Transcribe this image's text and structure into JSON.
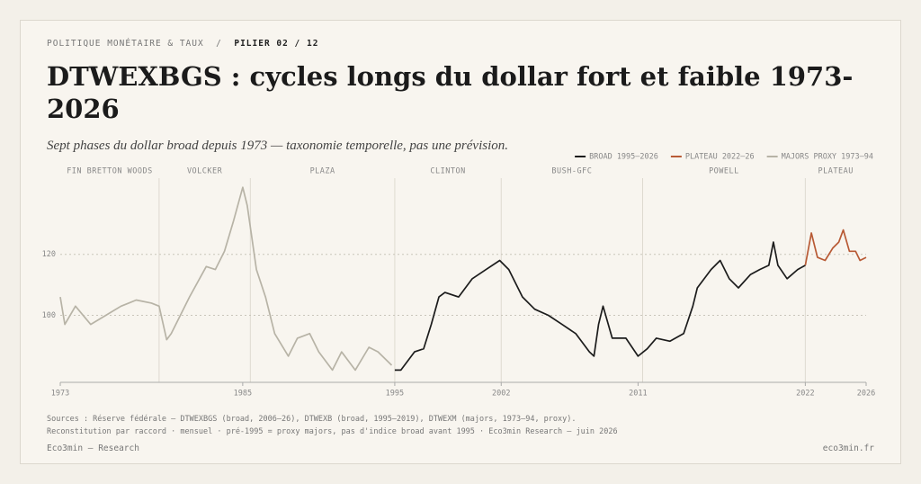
{
  "header": {
    "section": "POLITIQUE MONÉTAIRE & TAUX",
    "separator": "/",
    "pillar": "PILIER 02 / 12"
  },
  "chart_data": {
    "type": "line",
    "title": "DTWEXBGS : cycles longs du dollar fort et faible 1973-2026",
    "subtitle": "Sept phases du dollar broad depuis 1973 — taxonomie temporelle, pas une prévision.",
    "xlim": [
      1973,
      2026
    ],
    "xticks": [
      1973,
      1985,
      1995,
      2002,
      2011,
      2022,
      2026
    ],
    "ylim": [
      78,
      145
    ],
    "yticks": [
      100,
      120
    ],
    "grid": true,
    "legend": "top-right",
    "phases": [
      {
        "label": "FIN BRETTON WOODS",
        "start": 1973,
        "end": 1979.5
      },
      {
        "label": "VOLCKER",
        "start": 1979.5,
        "end": 1985.5
      },
      {
        "label": "PLAZA",
        "start": 1985.5,
        "end": 1995
      },
      {
        "label": "CLINTON",
        "start": 1995,
        "end": 2002
      },
      {
        "label": "BUSH-GFC",
        "start": 2002,
        "end": 2011.3
      },
      {
        "label": "POWELL",
        "start": 2011.3,
        "end": 2022
      },
      {
        "label": "PLATEAU",
        "start": 2022,
        "end": 2026
      }
    ],
    "series": [
      {
        "name": "BROAD 1995–2026",
        "color": "#1c1c1c",
        "x": [
          1995,
          1995.4,
          1996.3,
          1996.9,
          1997.4,
          1997.9,
          1998.3,
          1999.2,
          2000.1,
          2001,
          2001.9,
          2002.5,
          2003.4,
          2004.2,
          2005.1,
          2006,
          2006.9,
          2007.8,
          2008.1,
          2008.4,
          2008.7,
          2009.3,
          2010.2,
          2011,
          2011.6,
          2012.2,
          2013.1,
          2014,
          2014.6,
          2014.9,
          2015.8,
          2016.4,
          2017,
          2017.6,
          2018.4,
          2019,
          2019.6,
          2019.9,
          2020.2,
          2020.8,
          2021.5,
          2022
        ],
        "values": [
          82,
          82,
          88,
          89,
          97,
          106,
          107.5,
          106,
          112,
          115,
          118,
          115,
          106,
          102,
          100,
          97,
          94,
          88,
          86.6,
          97,
          103,
          92.5,
          92.5,
          86.6,
          89,
          92.5,
          91.5,
          94,
          103,
          109,
          115,
          118,
          112,
          109,
          113.4,
          115,
          116.4,
          124,
          116.4,
          112,
          115,
          116.4
        ]
      },
      {
        "name": "PLATEAU 2022–26",
        "color": "#b85a35",
        "x": [
          2022,
          2022.4,
          2022.8,
          2023.3,
          2023.8,
          2024.2,
          2024.5,
          2024.9,
          2025.3,
          2025.6,
          2026
        ],
        "values": [
          116.4,
          127,
          119,
          118,
          122,
          124,
          128,
          121,
          121,
          118,
          119
        ]
      },
      {
        "name": "MAJORS PROXY 1973–94",
        "color": "#b7b3a6",
        "x": [
          1973,
          1973.3,
          1974,
          1975,
          1976,
          1977,
          1977.5,
          1978,
          1979,
          1979.5,
          1980,
          1980.3,
          1981.5,
          1982.6,
          1983.2,
          1983.8,
          1984.4,
          1985,
          1985.3,
          1985.9,
          1986.5,
          1987.1,
          1988,
          1988.6,
          1989.4,
          1990,
          1990.9,
          1991.5,
          1992.4,
          1993.3,
          1993.9,
          1994.8
        ],
        "values": [
          106,
          97,
          103,
          97,
          100,
          103,
          104,
          105,
          104,
          103,
          92,
          94,
          106,
          116,
          115,
          121,
          131,
          142,
          136,
          115,
          106,
          94,
          86.6,
          92.5,
          94,
          88,
          82,
          88,
          82,
          89.5,
          88,
          83.6
        ]
      }
    ]
  },
  "footer": {
    "sources": "Sources : Réserve fédérale — DTWEXBGS (broad, 2006–26), DTWEXB (broad, 1995–2019), DTWEXM (majors, 1973–94, proxy).",
    "method": "Reconstitution par raccord · mensuel · pré-1995 = proxy majors, pas d'indice broad avant 1995 · Eco3min Research — juin 2026",
    "brand": "Eco3min — Research",
    "site": "eco3min.fr"
  }
}
